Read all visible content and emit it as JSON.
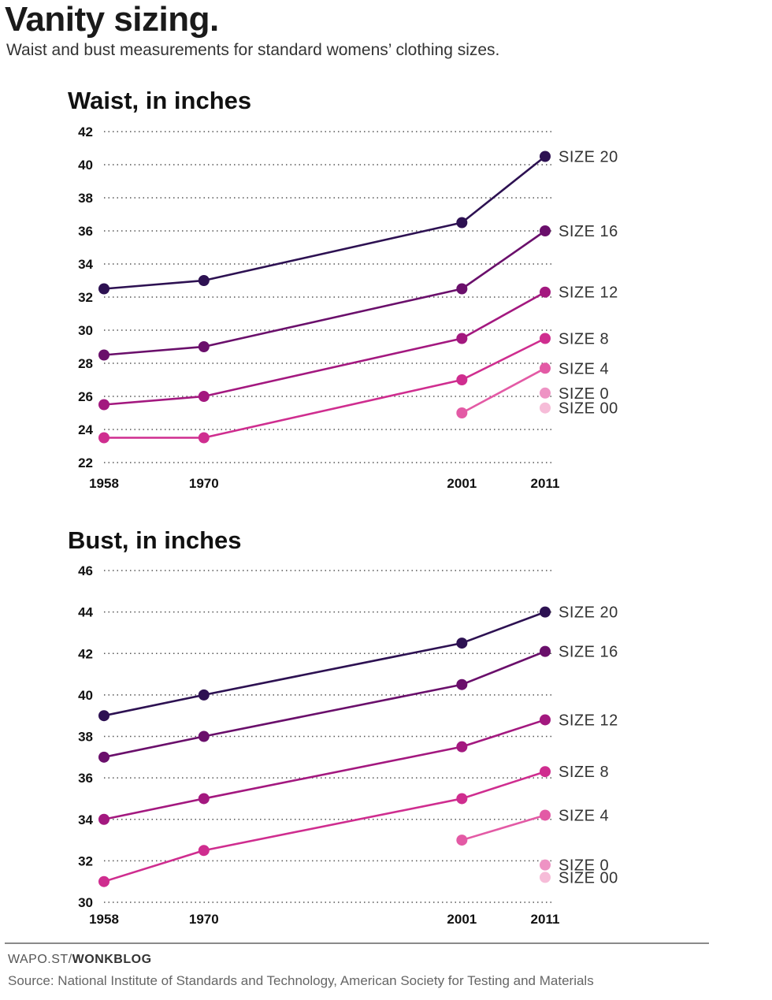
{
  "header": {
    "title": "Vanity sizing.",
    "subtitle": "Waist and bust measurements for standard womens’ clothing sizes."
  },
  "footer": {
    "credit_prefix": "WAPO.ST/",
    "credit_bold": "WONKBLOG",
    "source": "Source: National Institute of Standards and Technology, American Society for Testing and Materials"
  },
  "chart_data": [
    {
      "type": "line",
      "title": "Waist, in inches",
      "xlabel": "",
      "ylabel": "",
      "x": [
        1958,
        1970,
        2001,
        2011
      ],
      "x_tick_labels": [
        "1958",
        "1970",
        "2001",
        "2011"
      ],
      "ylim": [
        22,
        42
      ],
      "y_ticks": [
        22,
        24,
        26,
        28,
        30,
        32,
        34,
        36,
        38,
        40,
        42
      ],
      "grid": true,
      "series": [
        {
          "name": "SIZE 20",
          "color": "#2d1152",
          "values": [
            32.5,
            33,
            36.5,
            40.5
          ]
        },
        {
          "name": "SIZE 16",
          "color": "#6a0f6b",
          "values": [
            28.5,
            29,
            32.5,
            36
          ]
        },
        {
          "name": "SIZE 12",
          "color": "#a3187f",
          "values": [
            25.5,
            26,
            29.5,
            32.3
          ]
        },
        {
          "name": "SIZE 8",
          "color": "#cf2d8f",
          "values": [
            23.5,
            23.5,
            27,
            29.5
          ]
        },
        {
          "name": "SIZE 4",
          "color": "#e35aa5",
          "values": [
            null,
            null,
            25,
            27.7
          ]
        },
        {
          "name": "SIZE 0",
          "color": "#ee93c4",
          "values": [
            null,
            null,
            null,
            26.2
          ]
        },
        {
          "name": "SIZE 00",
          "color": "#f6bcd8",
          "values": [
            null,
            null,
            null,
            25.3
          ]
        }
      ]
    },
    {
      "type": "line",
      "title": "Bust, in inches",
      "xlabel": "",
      "ylabel": "",
      "x": [
        1958,
        1970,
        2001,
        2011
      ],
      "x_tick_labels": [
        "1958",
        "1970",
        "2001",
        "2011"
      ],
      "ylim": [
        30,
        46
      ],
      "y_ticks": [
        30,
        32,
        34,
        36,
        38,
        40,
        42,
        44,
        46
      ],
      "grid": true,
      "series": [
        {
          "name": "SIZE 20",
          "color": "#2d1152",
          "values": [
            39,
            40,
            42.5,
            44
          ]
        },
        {
          "name": "SIZE 16",
          "color": "#6a0f6b",
          "values": [
            37,
            38,
            40.5,
            42.1
          ]
        },
        {
          "name": "SIZE 12",
          "color": "#a3187f",
          "values": [
            34,
            35,
            37.5,
            38.8
          ]
        },
        {
          "name": "SIZE 8",
          "color": "#cf2d8f",
          "values": [
            31,
            32.5,
            35,
            36.3
          ]
        },
        {
          "name": "SIZE 4",
          "color": "#e35aa5",
          "values": [
            null,
            null,
            33,
            34.2
          ]
        },
        {
          "name": "SIZE 0",
          "color": "#ee93c4",
          "values": [
            null,
            null,
            null,
            31.8
          ]
        },
        {
          "name": "SIZE 00",
          "color": "#f6bcd8",
          "values": [
            null,
            null,
            null,
            31.2
          ]
        }
      ]
    }
  ]
}
